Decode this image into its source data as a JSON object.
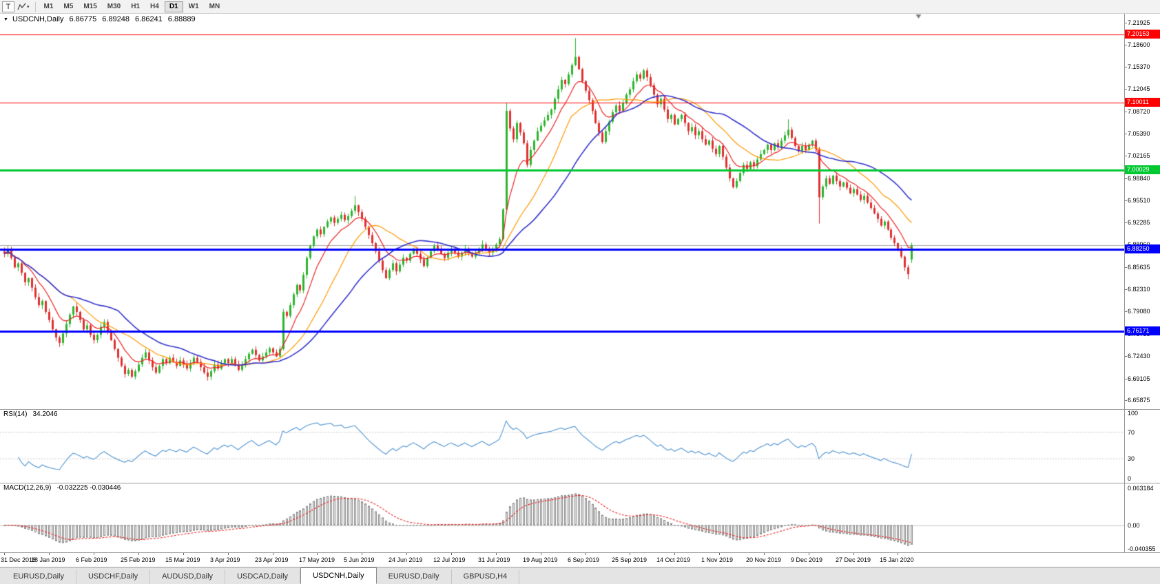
{
  "toolbar": {
    "tool_button": "T",
    "timeframes": [
      "M1",
      "M5",
      "M15",
      "M30",
      "H1",
      "H4",
      "D1",
      "W1",
      "MN"
    ],
    "active_timeframe": "D1"
  },
  "icons": {
    "symbol_collapse": "▼",
    "dropdown_caret": "▾"
  },
  "header": {
    "symbol": "USDCNH,Daily",
    "open": "6.86775",
    "high": "6.89248",
    "low": "6.86241",
    "close": "6.88889"
  },
  "rsi": {
    "label": "RSI(14)",
    "value": "34.2046"
  },
  "macd": {
    "label": "MACD(12,26,9)",
    "values": "-0.032225 -0.030446"
  },
  "colors": {
    "bull": "#2db52d",
    "bear": "#e03030",
    "ma_fast": "#ee2222",
    "ma_mid": "#ff9900",
    "ma_slow": "#3333cc",
    "rsi_line": "#5b9bd5",
    "rsi_levels": "#c8c8c8",
    "macd_hist_fill": "#e8e8e8",
    "macd_hist_stroke": "#8a8a8a",
    "macd_signal": "#ee2222",
    "last_price_line": "#ababab",
    "shift_marker": "#808080"
  },
  "tabs": [
    {
      "label": "EURUSD,Daily",
      "active": false
    },
    {
      "label": "USDCHF,Daily",
      "active": false
    },
    {
      "label": "AUDUSD,Daily",
      "active": false
    },
    {
      "label": "USDCAD,Daily",
      "active": false
    },
    {
      "label": "USDCNH,Daily",
      "active": true
    },
    {
      "label": "EURUSD,Daily",
      "active": false
    },
    {
      "label": "GBPUSD,H4",
      "active": false
    }
  ],
  "chart_data": {
    "type": "candlestick",
    "symbol": "USDCNH",
    "timeframe": "Daily",
    "grid": false,
    "price_domain": [
      6.65,
      7.23
    ],
    "data_width_fraction": 0.81,
    "last_candle": {
      "open": 6.86775,
      "high": 6.89248,
      "low": 6.86241,
      "close": 6.88889
    },
    "price_axis_ticks": [
      "7.21925",
      "7.18600",
      "7.15370",
      "7.12045",
      "7.08720",
      "7.05390",
      "7.02165",
      "6.98840",
      "6.95510",
      "6.92285",
      "6.88960",
      "6.85635",
      "6.82310",
      "6.79080",
      "6.75755",
      "6.72430",
      "6.69105",
      "6.65875"
    ],
    "x_labels": [
      "31 Dec 2018",
      "18 Jan 2019",
      "6 Feb 2019",
      "25 Feb 2019",
      "15 Mar 2019",
      "3 Apr 2019",
      "23 Apr 2019",
      "17 May 2019",
      "5 Jun 2019",
      "24 Jun 2019",
      "12 Jul 2019",
      "31 Jul 2019",
      "19 Aug 2019",
      "6 Sep 2019",
      "25 Sep 2019",
      "14 Oct 2019",
      "1 Nov 2019",
      "20 Nov 2019",
      "9 Dec 2019",
      "27 Dec 2019",
      "15 Jan 2020"
    ],
    "label_interval": 13,
    "closes": [
      6.876,
      6.883,
      6.87,
      6.856,
      6.862,
      6.848,
      6.834,
      6.84,
      6.826,
      6.812,
      6.8,
      6.806,
      6.79,
      6.778,
      6.764,
      6.752,
      6.744,
      6.758,
      6.772,
      6.786,
      6.798,
      6.79,
      6.778,
      6.764,
      6.77,
      6.756,
      6.748,
      6.756,
      6.768,
      6.775,
      6.762,
      6.748,
      6.735,
      6.722,
      6.71,
      6.698,
      6.704,
      6.694,
      6.702,
      6.712,
      6.722,
      6.73,
      6.718,
      6.708,
      6.7,
      6.71,
      6.72,
      6.714,
      6.722,
      6.716,
      6.71,
      6.718,
      6.712,
      6.706,
      6.714,
      6.722,
      6.716,
      6.708,
      6.7,
      6.694,
      6.702,
      6.712,
      6.706,
      6.714,
      6.72,
      6.714,
      6.72,
      6.712,
      6.704,
      6.712,
      6.72,
      6.728,
      6.734,
      6.726,
      6.718,
      6.724,
      6.73,
      6.736,
      6.73,
      6.724,
      6.735,
      6.79,
      6.784,
      6.8,
      6.816,
      6.83,
      6.822,
      6.845,
      6.87,
      6.888,
      6.902,
      6.912,
      6.905,
      6.916,
      6.924,
      6.93,
      6.922,
      6.928,
      6.934,
      6.926,
      6.932,
      6.94,
      6.948,
      6.938,
      6.928,
      6.916,
      6.904,
      6.892,
      6.88,
      6.866,
      6.852,
      6.84,
      6.852,
      6.862,
      6.85,
      6.86,
      6.87,
      6.866,
      6.876,
      6.884,
      6.876,
      6.868,
      6.858,
      6.87,
      6.88,
      6.888,
      6.882,
      6.876,
      6.87,
      6.878,
      6.884,
      6.878,
      6.872,
      6.878,
      6.884,
      6.878,
      6.872,
      6.878,
      6.884,
      6.89,
      6.884,
      6.878,
      6.884,
      6.89,
      6.898,
      6.942,
      7.088,
      7.062,
      7.046,
      7.07,
      7.056,
      7.04,
      7.008,
      7.03,
      7.044,
      7.058,
      7.066,
      7.074,
      7.082,
      7.09,
      7.106,
      7.12,
      7.134,
      7.128,
      7.142,
      7.156,
      7.168,
      7.15,
      7.132,
      7.118,
      7.104,
      7.088,
      7.07,
      7.056,
      7.042,
      7.058,
      7.072,
      7.086,
      7.096,
      7.088,
      7.1,
      7.112,
      7.12,
      7.132,
      7.142,
      7.136,
      7.148,
      7.138,
      7.126,
      7.112,
      7.098,
      7.106,
      7.09,
      7.076,
      7.082,
      7.068,
      7.076,
      7.082,
      7.07,
      7.058,
      7.064,
      7.052,
      7.058,
      7.046,
      7.038,
      7.044,
      7.032,
      7.024,
      7.036,
      7.02,
      7.004,
      6.988,
      6.975,
      6.984,
      6.996,
      7.008,
      7.002,
      7.012,
      7.006,
      7.016,
      7.024,
      7.03,
      7.038,
      7.03,
      7.04,
      7.034,
      7.044,
      7.052,
      7.06,
      7.048,
      7.036,
      7.028,
      7.036,
      7.03,
      7.038,
      7.044,
      7.032,
      6.96,
      6.976,
      6.988,
      6.98,
      6.992,
      6.984,
      6.976,
      6.982,
      6.974,
      6.966,
      6.972,
      6.964,
      6.956,
      6.962,
      6.952,
      6.944,
      6.936,
      6.928,
      6.918,
      6.924,
      6.912,
      6.9,
      6.892,
      6.884,
      6.872,
      6.856,
      6.846,
      6.88889
    ],
    "overrides": {
      "102": {
        "h": 6.962
      },
      "146": {
        "h": 7.0995
      },
      "166": {
        "h": 7.196
      },
      "228": {
        "h": 7.0755
      },
      "237": {
        "l": 6.921
      },
      "263": {
        "l": 6.8385
      },
      "264": {
        "o": 6.86775,
        "h": 6.89248,
        "l": 6.86241,
        "c": 6.88889
      }
    },
    "hlines": [
      {
        "price": 7.20153,
        "label": "7.20153",
        "color": "#ff0000",
        "width": 1
      },
      {
        "price": 7.10011,
        "label": "7.10011",
        "color": "#ff0000",
        "width": 1
      },
      {
        "price": 7.00029,
        "label": "7.00029",
        "color": "#00c830",
        "width": 3
      },
      {
        "price": 6.8825,
        "label": "6.88250",
        "color": "#0000ff",
        "width": 3
      },
      {
        "price": 6.76171,
        "label": "6.76171",
        "color": "#0000ff",
        "width": 3
      }
    ],
    "ma_lines": [
      {
        "name": "fast",
        "kind": "ema",
        "period": 9,
        "color": "#ee2222"
      },
      {
        "name": "medium",
        "kind": "sma",
        "period": 20,
        "color": "#ff9900"
      },
      {
        "name": "slow",
        "kind": "sma",
        "period": 34,
        "color": "#3333cc"
      }
    ],
    "rsi": {
      "period": 14,
      "last": 34.2046,
      "levels": [
        70,
        30
      ],
      "axis_ticks": [
        "100",
        "70",
        "30",
        "0"
      ],
      "range": [
        0,
        100
      ]
    },
    "macd": {
      "fast": 12,
      "slow": 26,
      "signal": 9,
      "last_macd": -0.032225,
      "last_signal": -0.030446,
      "axis_ticks": [
        "0.063184",
        "0.00",
        "-0.040355"
      ],
      "y_domain": [
        -0.0445,
        0.0695
      ]
    }
  }
}
